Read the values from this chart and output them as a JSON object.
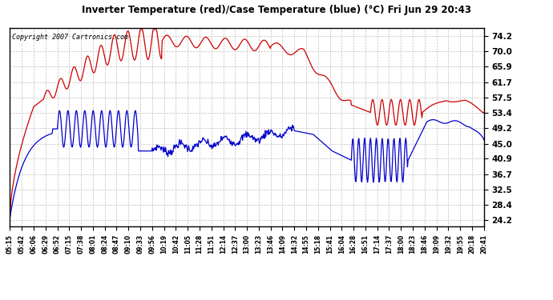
{
  "title": "Inverter Temperature (red)/Case Temperature (blue) (°C) Fri Jun 29 20:43",
  "copyright": "Copyright 2007 Cartronics.com",
  "yticks": [
    24.2,
    28.4,
    32.5,
    36.7,
    40.9,
    45.0,
    49.2,
    53.4,
    57.5,
    61.7,
    65.9,
    70.0,
    74.2
  ],
  "ylim": [
    22.5,
    76.5
  ],
  "bg_color": "#ffffff",
  "grid_color": "#bbbbbb",
  "red_color": "#cc0000",
  "blue_color": "#0000cc",
  "x_labels": [
    "05:15",
    "05:42",
    "06:06",
    "06:29",
    "06:52",
    "07:15",
    "07:38",
    "08:01",
    "08:24",
    "08:47",
    "09:10",
    "09:33",
    "09:56",
    "10:19",
    "10:42",
    "11:05",
    "11:28",
    "11:51",
    "12:14",
    "12:37",
    "13:00",
    "13:23",
    "13:46",
    "14:09",
    "14:32",
    "14:55",
    "15:18",
    "15:41",
    "16:04",
    "16:28",
    "16:51",
    "17:14",
    "17:37",
    "18:00",
    "18:23",
    "18:46",
    "19:09",
    "19:32",
    "19:55",
    "20:18",
    "20:41"
  ],
  "n_points": 820
}
